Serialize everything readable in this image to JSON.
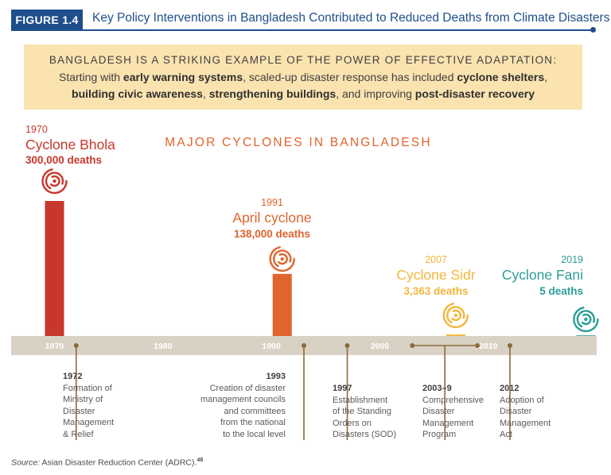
{
  "figure": {
    "badge": "FIGURE 1.4",
    "title": "Key Policy Interventions in Bangladesh Contributed to Reduced Deaths from Climate Disasters"
  },
  "banner": {
    "heading": "BANGLADESH IS A STRIKING EXAMPLE OF THE POWER OF EFFECTIVE ADAPTATION:",
    "line_parts": [
      {
        "text": "Starting with ",
        "bold": false
      },
      {
        "text": "early warning systems",
        "bold": true
      },
      {
        "text": ", scaled-up disaster response has included ",
        "bold": false
      },
      {
        "text": "cyclone shelters",
        "bold": true
      },
      {
        "text": ", ",
        "bold": false
      },
      {
        "text": "building civic awareness",
        "bold": true
      },
      {
        "text": ", ",
        "bold": false
      },
      {
        "text": "strengthening buildings",
        "bold": true
      },
      {
        "text": ", and improving ",
        "bold": false
      },
      {
        "text": "post-disaster recovery",
        "bold": true
      }
    ]
  },
  "chart_data": {
    "type": "bar",
    "title": "MAJOR CYCLONES IN BANGLADESH",
    "xlabel": "",
    "ylabel": "",
    "x_axis": {
      "type": "year",
      "min": 1966,
      "max": 2020,
      "ticks": [
        1970,
        1980,
        1990,
        2000,
        2010
      ]
    },
    "bars": [
      {
        "year": 1970,
        "name": "Cyclone Bhola",
        "deaths": 300000,
        "deaths_label": "300,000 deaths",
        "year_label": "1970",
        "color": "#c9372c"
      },
      {
        "year": 1991,
        "name": "April cyclone",
        "deaths": 138000,
        "deaths_label": "138,000 deaths",
        "year_label": "1991",
        "color": "#e0642d"
      },
      {
        "year": 2007,
        "name": "Cyclone Sidr",
        "deaths": 3363,
        "deaths_label": "3,363 deaths",
        "year_label": "2007",
        "color": "#f2b63a"
      },
      {
        "year": 2019,
        "name": "Cyclone Fani",
        "deaths": 5,
        "deaths_label": "5 deaths",
        "year_label": "2019",
        "color": "#2a9d96"
      }
    ],
    "events": [
      {
        "year": 1972,
        "label_year": "1972",
        "lines": [
          "Formation of",
          "Ministry of",
          "Disaster",
          "Management",
          "& Relief"
        ],
        "align": "left"
      },
      {
        "year": 1993,
        "label_year": "1993",
        "lines": [
          "Creation of disaster",
          "management councils",
          "and committees",
          "from the national",
          "to the local level"
        ],
        "align": "right"
      },
      {
        "year": 1997,
        "label_year": "1997",
        "lines": [
          "Establishment",
          "of the Standing",
          "Orders on",
          "Disasters (SOD)"
        ],
        "align": "left"
      },
      {
        "year": 2003,
        "year_end": 2009,
        "label_year": "2003–9",
        "lines": [
          "Comprehensive",
          "Disaster",
          "Management",
          "Program"
        ],
        "align": "left"
      },
      {
        "year": 2012,
        "label_year": "2012",
        "lines": [
          "Adoption of",
          "Disaster",
          "Management",
          "Act"
        ],
        "align": "left"
      }
    ]
  },
  "colors": {
    "axis_band": "#d9d2c4",
    "tick_label": "#ffffff",
    "event_line": "#8a6a3a",
    "chart_title": "#e0642d",
    "fig_blue": "#1f4e8c"
  },
  "source": {
    "label": "Source:",
    "text": " Asian Disaster Reduction Center (ADRC).",
    "note": "48"
  }
}
